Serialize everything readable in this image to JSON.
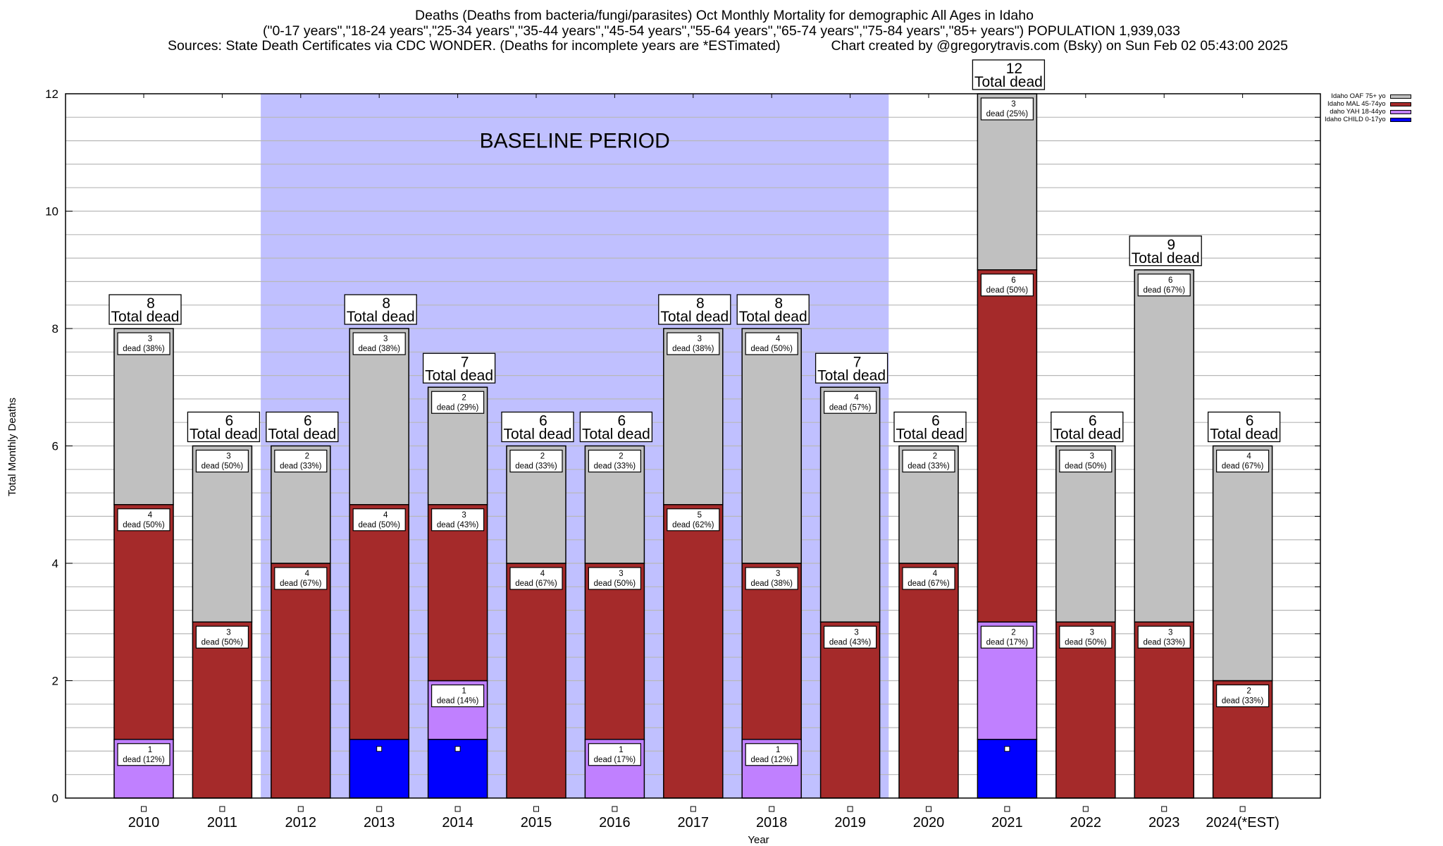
{
  "title": {
    "line1": "Deaths (Deaths from bacteria/fungi/parasites) Oct Monthly Mortality for demographic All Ages in Idaho",
    "line2": "(\"0-17 years\",\"18-24 years\",\"25-34 years\",\"35-44 years\",\"45-54 years\",\"55-64 years\",\"65-74 years\",\"75-84 years\",\"85+ years\") POPULATION 1,939,033",
    "line3_left": "Sources: State Death Certificates via CDC WONDER. (Deaths for incomplete years are *ESTimated)",
    "line3_right": "Chart created by @gregorytravis.com (Bsky) on Sun Feb 02 05:43:00 2025"
  },
  "legend": [
    {
      "label": "Idaho OAF 75+ yo",
      "color": "#c0c0c0"
    },
    {
      "label": "Idaho MAL 45-74yo",
      "color": "#a52a2a"
    },
    {
      "label": "daho YAH 18-44yo",
      "color": "#c080ff"
    },
    {
      "label": "Idaho CHILD 0-17yo",
      "color": "#0000ff"
    }
  ],
  "chart_data": {
    "type": "bar",
    "stacked": true,
    "xlabel": "Year",
    "ylabel": "Total Monthly Deaths",
    "ylim": [
      0,
      12
    ],
    "yticks": [
      0,
      2,
      4,
      6,
      8,
      10,
      12
    ],
    "grid": true,
    "legend_position": "top-right outside",
    "categories": [
      "2010",
      "2011",
      "2012",
      "2013",
      "2014",
      "2015",
      "2016",
      "2017",
      "2018",
      "2019",
      "2020",
      "2021",
      "2022",
      "2023",
      "2024(*EST)"
    ],
    "series": [
      {
        "name": "Idaho CHILD 0-17yo",
        "color": "#0000ff",
        "values": [
          0,
          0,
          0,
          1,
          1,
          0,
          0,
          0,
          0,
          0,
          0,
          1,
          0,
          0,
          0
        ]
      },
      {
        "name": "daho YAH 18-44yo",
        "color": "#c080ff",
        "values": [
          1,
          0,
          0,
          0,
          1,
          0,
          1,
          0,
          1,
          0,
          0,
          2,
          0,
          0,
          0
        ]
      },
      {
        "name": "Idaho MAL 45-74yo",
        "color": "#a52a2a",
        "values": [
          4,
          3,
          4,
          4,
          3,
          4,
          3,
          5,
          3,
          3,
          4,
          6,
          3,
          3,
          2
        ]
      },
      {
        "name": "Idaho OAF 75+ yo",
        "color": "#c0c0c0",
        "values": [
          3,
          3,
          2,
          3,
          2,
          2,
          2,
          3,
          4,
          4,
          2,
          3,
          3,
          6,
          4
        ]
      }
    ],
    "segment_labels": [
      {
        "category": "2010",
        "series": "daho YAH 18-44yo",
        "count": "1",
        "text": "dead (12%)"
      },
      {
        "category": "2010",
        "series": "Idaho MAL 45-74yo",
        "count": "4",
        "text": "dead (50%)"
      },
      {
        "category": "2010",
        "series": "Idaho OAF 75+ yo",
        "count": "3",
        "text": "dead (38%)"
      },
      {
        "category": "2011",
        "series": "Idaho MAL 45-74yo",
        "count": "3",
        "text": "dead (50%)"
      },
      {
        "category": "2011",
        "series": "Idaho OAF 75+ yo",
        "count": "3",
        "text": "dead (50%)"
      },
      {
        "category": "2012",
        "series": "Idaho MAL 45-74yo",
        "count": "4",
        "text": "dead (67%)"
      },
      {
        "category": "2012",
        "series": "Idaho OAF 75+ yo",
        "count": "2",
        "text": "dead (33%)"
      },
      {
        "category": "2013",
        "series": "Idaho MAL 45-74yo",
        "count": "4",
        "text": "dead (50%)"
      },
      {
        "category": "2013",
        "series": "Idaho OAF 75+ yo",
        "count": "3",
        "text": "dead (38%)"
      },
      {
        "category": "2014",
        "series": "daho YAH 18-44yo",
        "count": "1",
        "text": "dead (14%)"
      },
      {
        "category": "2014",
        "series": "Idaho MAL 45-74yo",
        "count": "3",
        "text": "dead (43%)"
      },
      {
        "category": "2014",
        "series": "Idaho OAF 75+ yo",
        "count": "2",
        "text": "dead (29%)"
      },
      {
        "category": "2015",
        "series": "Idaho MAL 45-74yo",
        "count": "4",
        "text": "dead (67%)"
      },
      {
        "category": "2015",
        "series": "Idaho OAF 75+ yo",
        "count": "2",
        "text": "dead (33%)"
      },
      {
        "category": "2016",
        "series": "daho YAH 18-44yo",
        "count": "1",
        "text": "dead (17%)"
      },
      {
        "category": "2016",
        "series": "Idaho MAL 45-74yo",
        "count": "3",
        "text": "dead (50%)"
      },
      {
        "category": "2016",
        "series": "Idaho OAF 75+ yo",
        "count": "2",
        "text": "dead (33%)"
      },
      {
        "category": "2017",
        "series": "Idaho MAL 45-74yo",
        "count": "5",
        "text": "dead (62%)"
      },
      {
        "category": "2017",
        "series": "Idaho OAF 75+ yo",
        "count": "3",
        "text": "dead (38%)"
      },
      {
        "category": "2018",
        "series": "daho YAH 18-44yo",
        "count": "1",
        "text": "dead (12%)"
      },
      {
        "category": "2018",
        "series": "Idaho MAL 45-74yo",
        "count": "3",
        "text": "dead (38%)"
      },
      {
        "category": "2018",
        "series": "Idaho OAF 75+ yo",
        "count": "4",
        "text": "dead (50%)"
      },
      {
        "category": "2019",
        "series": "Idaho MAL 45-74yo",
        "count": "3",
        "text": "dead (43%)"
      },
      {
        "category": "2019",
        "series": "Idaho OAF 75+ yo",
        "count": "4",
        "text": "dead (57%)"
      },
      {
        "category": "2020",
        "series": "Idaho MAL 45-74yo",
        "count": "4",
        "text": "dead (67%)"
      },
      {
        "category": "2020",
        "series": "Idaho OAF 75+ yo",
        "count": "2",
        "text": "dead (33%)"
      },
      {
        "category": "2021",
        "series": "daho YAH 18-44yo",
        "count": "2",
        "text": "dead (17%)"
      },
      {
        "category": "2021",
        "series": "Idaho MAL 45-74yo",
        "count": "6",
        "text": "dead (50%)"
      },
      {
        "category": "2021",
        "series": "Idaho OAF 75+ yo",
        "count": "3",
        "text": "dead (25%)"
      },
      {
        "category": "2022",
        "series": "Idaho MAL 45-74yo",
        "count": "3",
        "text": "dead (50%)"
      },
      {
        "category": "2022",
        "series": "Idaho OAF 75+ yo",
        "count": "3",
        "text": "dead (50%)"
      },
      {
        "category": "2023",
        "series": "Idaho MAL 45-74yo",
        "count": "3",
        "text": "dead (33%)"
      },
      {
        "category": "2023",
        "series": "Idaho OAF 75+ yo",
        "count": "6",
        "text": "dead (67%)"
      },
      {
        "category": "2024(*EST)",
        "series": "Idaho MAL 45-74yo",
        "count": "2",
        "text": "dead (33%)"
      },
      {
        "category": "2024(*EST)",
        "series": "Idaho OAF 75+ yo",
        "count": "4",
        "text": "dead (67%)"
      }
    ],
    "totals": [
      "8",
      "6",
      "6",
      "8",
      "7",
      "6",
      "6",
      "8",
      "8",
      "7",
      "6",
      "12",
      "6",
      "9",
      "6"
    ],
    "total_label_text": "Total dead",
    "annotations": [
      {
        "type": "shaded-region",
        "label": "BASELINE PERIOD",
        "from_category": "2012",
        "to_category": "2019",
        "color": "#c0c0ff"
      }
    ]
  }
}
